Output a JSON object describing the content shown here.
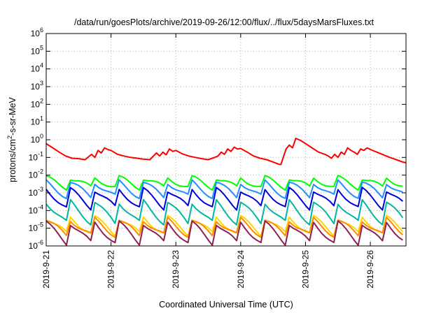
{
  "chart_data": {
    "type": "line",
    "title": "/data/run/goesPlots/archive/2019-09-26/12:00/flux/../flux/5daysMarsFluxes.txt",
    "xlabel": "Coordinated Universal Time (UTC)",
    "ylabel_main": "protons/cm",
    "ylabel_sup": "2",
    "ylabel_rest": "-s-sr-MeV",
    "yscale": "log",
    "ylim": [
      1e-06,
      1000000.0
    ],
    "xlim": [
      0,
      5.55
    ],
    "y_ticks": [
      {
        "base": "10",
        "exp": "6",
        "value": 1000000.0
      },
      {
        "base": "10",
        "exp": "5",
        "value": 100000.0
      },
      {
        "base": "10",
        "exp": "4",
        "value": 10000.0
      },
      {
        "base": "10",
        "exp": "3",
        "value": 1000.0
      },
      {
        "base": "10",
        "exp": "2",
        "value": 100.0
      },
      {
        "base": "10",
        "exp": "1",
        "value": 10.0
      },
      {
        "base": "10",
        "exp": "0",
        "value": 1.0
      },
      {
        "base": "10",
        "exp": "-1",
        "value": 0.1
      },
      {
        "base": "10",
        "exp": "-2",
        "value": 0.01
      },
      {
        "base": "10",
        "exp": "-3",
        "value": 0.001
      },
      {
        "base": "10",
        "exp": "-4",
        "value": 0.0001
      },
      {
        "base": "10",
        "exp": "-5",
        "value": 1e-05
      },
      {
        "base": "10",
        "exp": "-6",
        "value": 1e-06
      }
    ],
    "x_ticks": [
      {
        "label": "2019-9-21",
        "value": 0
      },
      {
        "label": "2019-9-22",
        "value": 1
      },
      {
        "label": "2019-9-23",
        "value": 2
      },
      {
        "label": "2019-9-24",
        "value": 3
      },
      {
        "label": "2019-9-25",
        "value": 4
      },
      {
        "label": "2019-9-26",
        "value": 5
      }
    ],
    "grid": true,
    "series": [
      {
        "color": "#ff0000",
        "x": [
          0,
          0.1,
          0.2,
          0.3,
          0.4,
          0.5,
          0.6,
          0.7,
          0.75,
          0.8,
          0.85,
          0.9,
          0.95,
          1.0,
          1.1,
          1.2,
          1.3,
          1.4,
          1.5,
          1.6,
          1.7,
          1.75,
          1.8,
          1.85,
          1.9,
          1.95,
          2.0,
          2.1,
          2.2,
          2.3,
          2.4,
          2.5,
          2.6,
          2.65,
          2.7,
          2.75,
          2.8,
          2.85,
          2.9,
          2.95,
          3.0,
          3.1,
          3.2,
          3.3,
          3.4,
          3.5,
          3.6,
          3.62,
          3.7,
          3.75,
          3.8,
          3.85,
          3.9,
          3.95,
          4.0,
          4.1,
          4.2,
          4.3,
          4.35,
          4.4,
          4.45,
          4.5,
          4.55,
          4.6,
          4.65,
          4.7,
          4.75,
          4.8,
          4.85,
          4.9,
          4.95,
          5.0,
          5.1,
          5.2,
          5.3,
          5.4,
          5.5,
          5.55
        ],
        "y": [
          0.6,
          0.35,
          0.2,
          0.12,
          0.09,
          0.085,
          0.075,
          0.15,
          0.1,
          0.25,
          0.18,
          0.35,
          0.28,
          0.25,
          0.15,
          0.12,
          0.1,
          0.09,
          0.08,
          0.075,
          0.18,
          0.12,
          0.2,
          0.14,
          0.3,
          0.22,
          0.25,
          0.16,
          0.12,
          0.1,
          0.085,
          0.075,
          0.1,
          0.12,
          0.2,
          0.15,
          0.3,
          0.22,
          0.38,
          0.3,
          0.32,
          0.2,
          0.12,
          0.09,
          0.075,
          0.055,
          0.04,
          0.04,
          0.3,
          0.5,
          0.35,
          1.2,
          1.0,
          0.8,
          0.6,
          0.35,
          0.2,
          0.15,
          0.12,
          0.09,
          0.15,
          0.1,
          0.2,
          0.15,
          0.35,
          0.25,
          0.2,
          0.15,
          0.3,
          0.25,
          0.35,
          0.28,
          0.2,
          0.14,
          0.1,
          0.075,
          0.055,
          0.05
        ]
      },
      {
        "color": "#00ff00",
        "sawtooth": {
          "low": 0.002,
          "high": 0.007
        },
        "x_start": 0,
        "x_end": 5.55
      },
      {
        "color": "#1e90ff",
        "sawtooth": {
          "low": 0.0006,
          "high": 0.004
        },
        "x_start": 0,
        "x_end": 5.55
      },
      {
        "color": "#0000dd",
        "sawtooth": {
          "low": 0.00015,
          "high": 0.0015
        },
        "x_start": 0,
        "x_end": 5.55
      },
      {
        "color": "#00b8a0",
        "sawtooth": {
          "low": 2e-05,
          "high": 0.0003
        },
        "x_start": 0,
        "x_end": 5.55
      },
      {
        "color": "#ffd700",
        "sawtooth": {
          "low": 5e-06,
          "high": 4e-05
        },
        "x_start": 0,
        "x_end": 5.55
      },
      {
        "color": "#ff8c00",
        "sawtooth": {
          "low": 4e-06,
          "high": 3e-05
        },
        "x_start": 0,
        "x_end": 5.55
      },
      {
        "color": "#8b2252",
        "sawtooth": {
          "low": 1.5e-06,
          "high": 2e-05
        },
        "x_start": 0,
        "x_end": 5.55
      }
    ]
  }
}
